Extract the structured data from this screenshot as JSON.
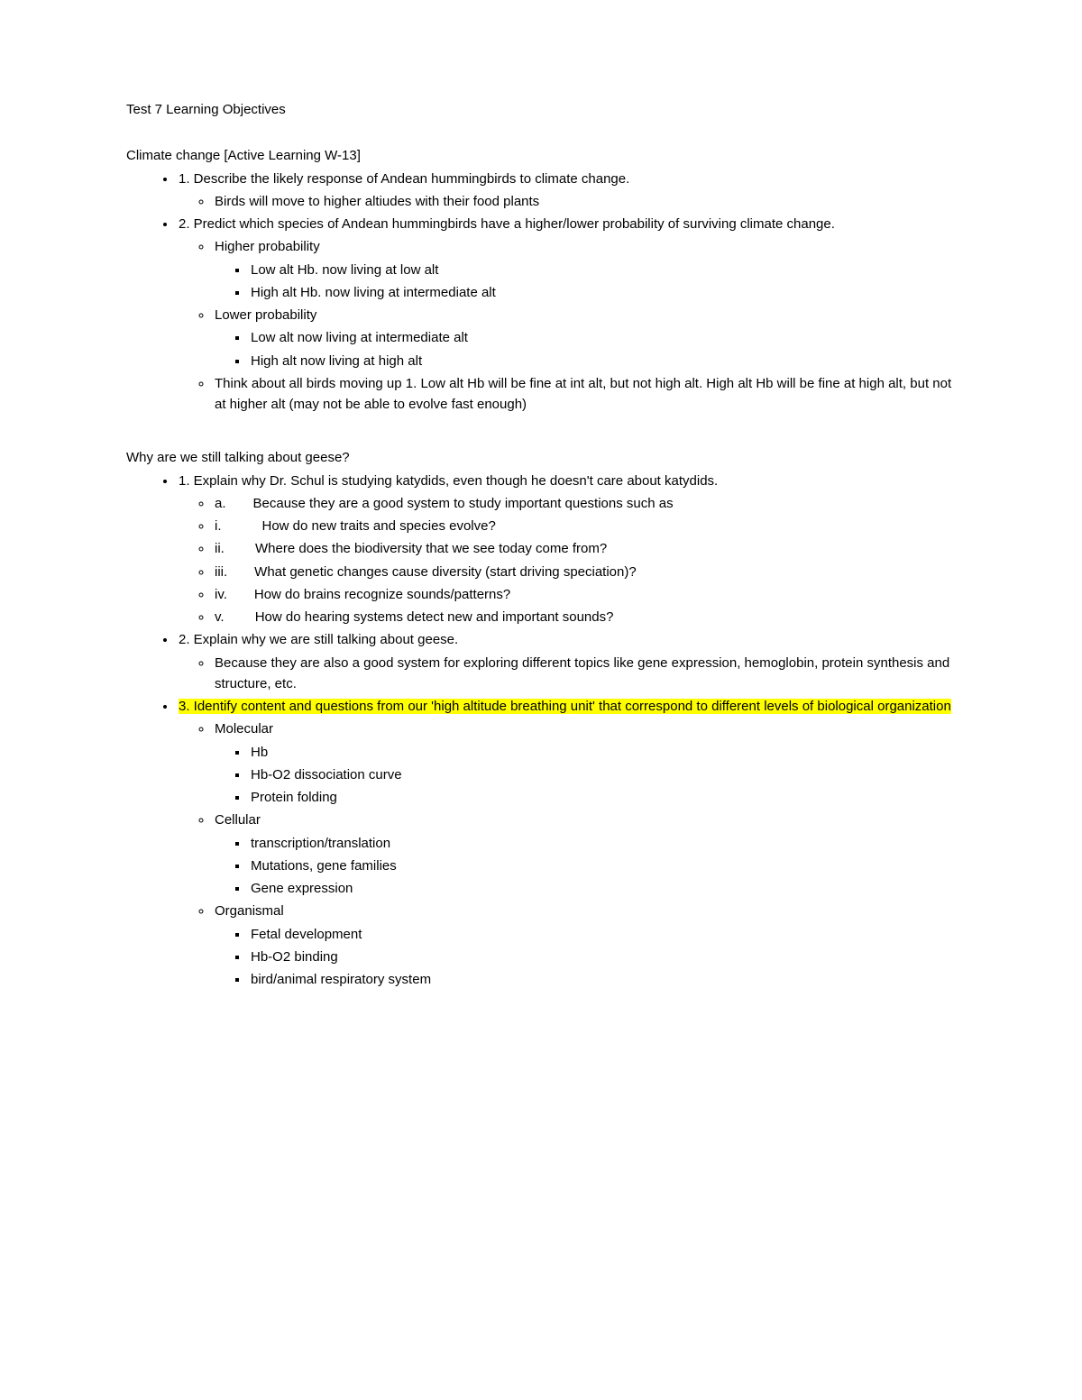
{
  "title": "Test 7 Learning Objectives",
  "highlight_color": "#ffff00",
  "background_color": "#ffffff",
  "text_color": "#000000",
  "font_family": "Arial",
  "base_fontsize_pt": 11,
  "sections": [
    {
      "heading": "Climate change [Active Learning W-13]",
      "items": [
        {
          "text": "1.  Describe the likely response of Andean hummingbirds to climate change.",
          "children": [
            {
              "text": "Birds will move to higher altiudes with their food plants"
            }
          ]
        },
        {
          "text": "2.  Predict which species of Andean hummingbirds have a higher/lower probability of surviving climate change.",
          "children": [
            {
              "text": "Higher probability",
              "children": [
                {
                  "text": "Low alt Hb. now living at low alt"
                },
                {
                  "text": "High alt Hb. now living at intermediate alt"
                }
              ]
            },
            {
              "text": "Lower probability",
              "children": [
                {
                  "text": "Low alt now living at intermediate alt"
                },
                {
                  "text": "High alt now living at high alt"
                }
              ]
            },
            {
              "text": "Think about all birds moving up 1. Low alt Hb will be fine at int alt, but not high alt. High alt Hb will be fine at high alt, but not at higher alt (may not be able to evolve fast enough)"
            }
          ]
        }
      ]
    },
    {
      "heading": "Why are we still talking about geese?",
      "items": [
        {
          "text": "1.  Explain why Dr. Schul is studying katydids, even though he doesn't care about katydids.",
          "children": [
            {
              "text": "a.  Because they are a good system to study important questions such as"
            },
            {
              "text": "i.   How do new traits and species evolve?"
            },
            {
              "text": "ii.   Where does the biodiversity that we see today come from?"
            },
            {
              "text": "iii.  What genetic changes cause diversity (start driving speciation)?"
            },
            {
              "text": "iv.  How do brains recognize sounds/patterns?"
            },
            {
              "text": "v.   How do hearing systems detect new and important sounds?"
            }
          ]
        },
        {
          "text": "2.  Explain why we are still talking about geese.",
          "children": [
            {
              "text": "Because they are also a good system for exploring different topics like gene expression, hemoglobin, protein synthesis and structure, etc."
            }
          ]
        },
        {
          "text": "3.  Identify content and questions from our 'high altitude breathing unit' that correspond to different levels of biological organization",
          "highlighted": true,
          "children": [
            {
              "text": "Molecular",
              "children": [
                {
                  "text": "Hb"
                },
                {
                  "text": "Hb-O2 dissociation curve"
                },
                {
                  "text": "Protein folding"
                }
              ]
            },
            {
              "text": "Cellular",
              "children": [
                {
                  "text": "transcription/translation"
                },
                {
                  "text": "Mutations, gene families"
                },
                {
                  "text": "Gene expression"
                }
              ]
            },
            {
              "text": "Organismal",
              "children": [
                {
                  "text": "Fetal development"
                },
                {
                  "text": "Hb-O2 binding"
                },
                {
                  "text": "bird/animal respiratory system"
                }
              ]
            }
          ]
        }
      ]
    }
  ]
}
